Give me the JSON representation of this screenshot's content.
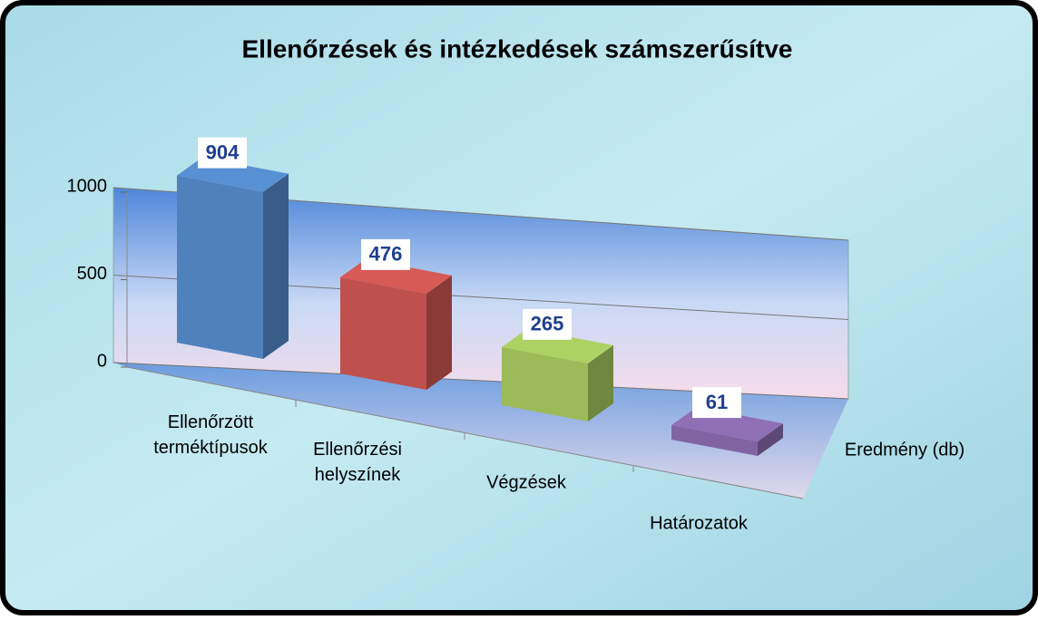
{
  "chart_data": {
    "type": "bar3d",
    "title": "Ellenőrzések és intézkedések számszerűsítve",
    "categories": [
      "Ellenőrzött terméktípusok",
      "Ellenőrzési helyszínek",
      "Végzések",
      "Határozatok"
    ],
    "series": [
      {
        "name": "Eredmény (db)",
        "values": [
          904,
          476,
          265,
          61
        ],
        "colors": [
          "#4f81bd",
          "#c0504d",
          "#9bbb59",
          "#8064a2"
        ]
      }
    ],
    "ylim": [
      0,
      1000
    ],
    "yticks": [
      0,
      500,
      1000
    ],
    "grid": true
  }
}
